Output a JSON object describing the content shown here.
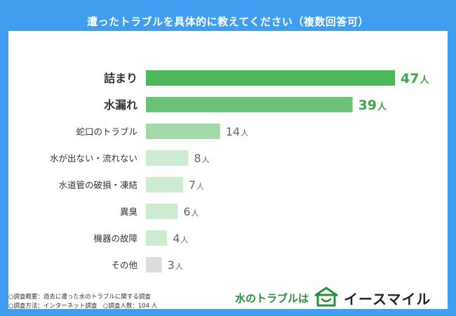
{
  "header": {
    "title": "遭ったトラブルを具体的に教えてください（複数回答可）"
  },
  "chart_data": {
    "type": "bar",
    "orientation": "horizontal",
    "categories": [
      "詰まり",
      "水漏れ",
      "蛇口のトラブル",
      "水が出ない・流れない",
      "水道管の破損・凍結",
      "異臭",
      "機器の故障",
      "その他"
    ],
    "values": [
      47,
      39,
      14,
      8,
      7,
      6,
      4,
      3
    ],
    "unit": "人",
    "colors": [
      "#4cb85a",
      "#6cc278",
      "#a3d9a9",
      "#cdebd0",
      "#cdebd0",
      "#cdebd0",
      "#cdebd0",
      "#dcdcdc"
    ],
    "label_colors": [
      "#3aa84a",
      "#3aa84a",
      "#666666",
      "#666666",
      "#666666",
      "#666666",
      "#666666",
      "#666666"
    ],
    "emphasis": [
      true,
      true,
      false,
      false,
      false,
      false,
      false,
      false
    ],
    "xlim": [
      0,
      50
    ],
    "grid": false
  },
  "footnotes": {
    "line1": "○調査概要：過去に遭った水のトラブルに関する調査",
    "line2": "○調査方法：インターネット調査　○調査人数：104 人"
  },
  "brand": {
    "prefix": "水のトラブルは",
    "name": "イースマイル",
    "logo_icon": "house-smile-icon",
    "accent": "#2a8f3a"
  }
}
